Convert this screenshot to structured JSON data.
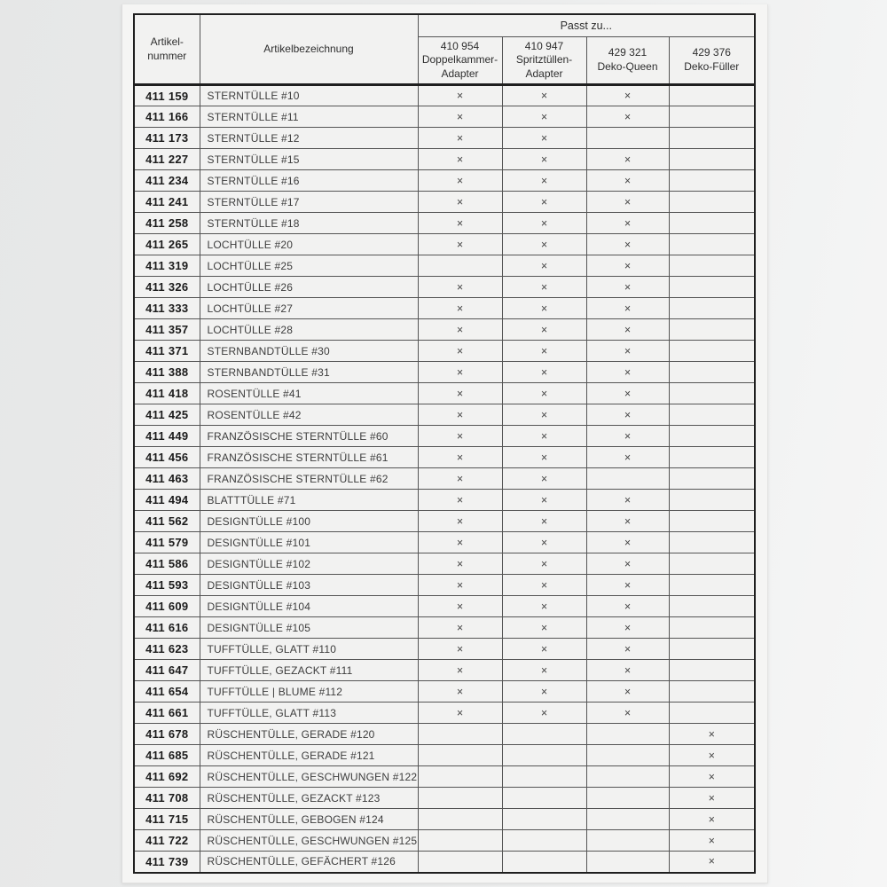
{
  "table": {
    "col_artikelnummer_line1": "Artikel-",
    "col_artikelnummer_line2": "nummer",
    "col_artikelbezeichnung": "Artikelbezeichnung",
    "group_header": "Passt zu...",
    "fit_columns": [
      {
        "code": "410 954",
        "name": "Doppelkammer-Adapter"
      },
      {
        "code": "410 947",
        "name": "Spritztüllen-Adapter"
      },
      {
        "code": "429 321",
        "name": "Deko-Queen"
      },
      {
        "code": "429 376",
        "name": "Deko-Füller"
      }
    ],
    "check_mark": "×",
    "rows": [
      {
        "nr": "411 159",
        "name": "STERNTÜLLE #10",
        "fits": [
          1,
          1,
          1,
          0
        ]
      },
      {
        "nr": "411 166",
        "name": "STERNTÜLLE #11",
        "fits": [
          1,
          1,
          1,
          0
        ]
      },
      {
        "nr": "411 173",
        "name": "STERNTÜLLE #12",
        "fits": [
          1,
          1,
          0,
          0
        ]
      },
      {
        "nr": "411 227",
        "name": "STERNTÜLLE #15",
        "fits": [
          1,
          1,
          1,
          0
        ]
      },
      {
        "nr": "411 234",
        "name": "STERNTÜLLE #16",
        "fits": [
          1,
          1,
          1,
          0
        ]
      },
      {
        "nr": "411 241",
        "name": "STERNTÜLLE #17",
        "fits": [
          1,
          1,
          1,
          0
        ]
      },
      {
        "nr": "411 258",
        "name": "STERNTÜLLE #18",
        "fits": [
          1,
          1,
          1,
          0
        ]
      },
      {
        "nr": "411 265",
        "name": "LOCHTÜLLE #20",
        "fits": [
          1,
          1,
          1,
          0
        ]
      },
      {
        "nr": "411 319",
        "name": "LOCHTÜLLE #25",
        "fits": [
          0,
          1,
          1,
          0
        ]
      },
      {
        "nr": "411 326",
        "name": "LOCHTÜLLE #26",
        "fits": [
          1,
          1,
          1,
          0
        ]
      },
      {
        "nr": "411 333",
        "name": "LOCHTÜLLE #27",
        "fits": [
          1,
          1,
          1,
          0
        ]
      },
      {
        "nr": "411 357",
        "name": "LOCHTÜLLE #28",
        "fits": [
          1,
          1,
          1,
          0
        ]
      },
      {
        "nr": "411 371",
        "name": "STERNBANDTÜLLE #30",
        "fits": [
          1,
          1,
          1,
          0
        ]
      },
      {
        "nr": "411 388",
        "name": "STERNBANDTÜLLE #31",
        "fits": [
          1,
          1,
          1,
          0
        ]
      },
      {
        "nr": "411 418",
        "name": "ROSENTÜLLE #41",
        "fits": [
          1,
          1,
          1,
          0
        ]
      },
      {
        "nr": "411 425",
        "name": "ROSENTÜLLE #42",
        "fits": [
          1,
          1,
          1,
          0
        ]
      },
      {
        "nr": "411 449",
        "name": "FRANZÖSISCHE STERNTÜLLE #60",
        "fits": [
          1,
          1,
          1,
          0
        ]
      },
      {
        "nr": "411 456",
        "name": "FRANZÖSISCHE STERNTÜLLE #61",
        "fits": [
          1,
          1,
          1,
          0
        ]
      },
      {
        "nr": "411 463",
        "name": "FRANZÖSISCHE STERNTÜLLE #62",
        "fits": [
          1,
          1,
          0,
          0
        ]
      },
      {
        "nr": "411 494",
        "name": "BLATTTÜLLE #71",
        "fits": [
          1,
          1,
          1,
          0
        ]
      },
      {
        "nr": "411 562",
        "name": "DESIGNTÜLLE #100",
        "fits": [
          1,
          1,
          1,
          0
        ]
      },
      {
        "nr": "411 579",
        "name": "DESIGNTÜLLE #101",
        "fits": [
          1,
          1,
          1,
          0
        ]
      },
      {
        "nr": "411 586",
        "name": "DESIGNTÜLLE #102",
        "fits": [
          1,
          1,
          1,
          0
        ]
      },
      {
        "nr": "411 593",
        "name": "DESIGNTÜLLE #103",
        "fits": [
          1,
          1,
          1,
          0
        ]
      },
      {
        "nr": "411 609",
        "name": "DESIGNTÜLLE #104",
        "fits": [
          1,
          1,
          1,
          0
        ]
      },
      {
        "nr": "411 616",
        "name": "DESIGNTÜLLE #105",
        "fits": [
          1,
          1,
          1,
          0
        ]
      },
      {
        "nr": "411 623",
        "name": "TUFFTÜLLE, GLATT #110",
        "fits": [
          1,
          1,
          1,
          0
        ]
      },
      {
        "nr": "411 647",
        "name": "TUFFTÜLLE, GEZACKT #111",
        "fits": [
          1,
          1,
          1,
          0
        ]
      },
      {
        "nr": "411 654",
        "name": "TUFFTÜLLE | BLUME #112",
        "fits": [
          1,
          1,
          1,
          0
        ]
      },
      {
        "nr": "411 661",
        "name": "TUFFTÜLLE, GLATT #113",
        "fits": [
          1,
          1,
          1,
          0
        ]
      },
      {
        "nr": "411 678",
        "name": "RÜSCHENTÜLLE, GERADE #120",
        "fits": [
          0,
          0,
          0,
          1
        ]
      },
      {
        "nr": "411 685",
        "name": "RÜSCHENTÜLLE, GERADE #121",
        "fits": [
          0,
          0,
          0,
          1
        ]
      },
      {
        "nr": "411 692",
        "name": "RÜSCHENTÜLLE, GESCHWUNGEN #122",
        "fits": [
          0,
          0,
          0,
          1
        ]
      },
      {
        "nr": "411 708",
        "name": "RÜSCHENTÜLLE, GEZACKT #123",
        "fits": [
          0,
          0,
          0,
          1
        ]
      },
      {
        "nr": "411 715",
        "name": "RÜSCHENTÜLLE, GEBOGEN #124",
        "fits": [
          0,
          0,
          0,
          1
        ]
      },
      {
        "nr": "411 722",
        "name": "RÜSCHENTÜLLE, GESCHWUNGEN #125",
        "fits": [
          0,
          0,
          0,
          1
        ]
      },
      {
        "nr": "411 739",
        "name": "RÜSCHENTÜLLE, GEFÄCHERT #126",
        "fits": [
          0,
          0,
          0,
          1
        ]
      }
    ]
  },
  "colors": {
    "canvas_bg": "#eaebeb",
    "page_bg": "#f5f5f4",
    "cell_bg": "#f2f2f1",
    "outer_border": "#1f1f1f",
    "row_border": "#3c3c3c",
    "number_text": "#1b1b1b",
    "name_text": "#3d3d3d",
    "mark_text": "#474747"
  }
}
